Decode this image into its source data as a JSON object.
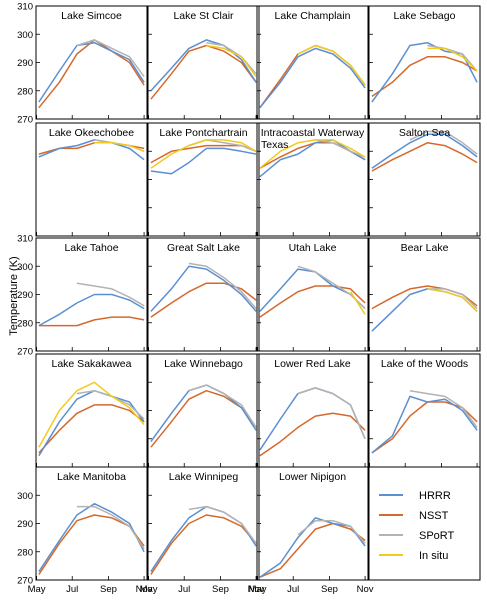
{
  "figure": {
    "ylabel": "Temperature (K)",
    "months": [
      "May",
      "Jul",
      "Sep",
      "Nov"
    ],
    "rows": [
      {
        "yticks": [
          310,
          300,
          290,
          280,
          270
        ],
        "ylim": [
          270,
          310
        ]
      },
      {
        "yticks": [],
        "ylim": [
          270,
          310
        ]
      },
      {
        "yticks": [
          310,
          300,
          290,
          280,
          270
        ],
        "ylim": [
          270,
          310
        ]
      },
      {
        "yticks": [],
        "ylim": [
          270,
          310
        ]
      },
      {
        "yticks": [
          300,
          290,
          280,
          270
        ],
        "ylim": [
          270,
          310
        ]
      }
    ],
    "legend": [
      {
        "name": "HRRR",
        "color": "#5b8fd2"
      },
      {
        "name": "NSST",
        "color": "#d5692b"
      },
      {
        "name": "SPoRT",
        "color": "#b3b3b3"
      },
      {
        "name": "In situ",
        "color": "#f2cb1f"
      }
    ]
  },
  "chart_data": [
    {
      "title": "Lake Simcoe",
      "type": "line",
      "x": [
        125,
        160,
        190,
        220,
        250,
        280,
        305
      ],
      "series": [
        {
          "name": "HRRR",
          "values": [
            276,
            287,
            296,
            297,
            294,
            291,
            283
          ]
        },
        {
          "name": "NSST",
          "values": [
            274,
            283,
            293,
            298,
            294,
            290,
            282
          ]
        },
        {
          "name": "SPoRT",
          "values": [
            null,
            null,
            296,
            298,
            295,
            292,
            285
          ]
        }
      ]
    },
    {
      "title": "Lake St Clair",
      "type": "line",
      "x": [
        125,
        160,
        190,
        220,
        250,
        280,
        305
      ],
      "series": [
        {
          "name": "HRRR",
          "values": [
            280,
            288,
            295,
            298,
            296,
            291,
            283
          ]
        },
        {
          "name": "NSST",
          "values": [
            277,
            286,
            294,
            296,
            294,
            290,
            283
          ]
        },
        {
          "name": "SPoRT",
          "values": [
            null,
            null,
            null,
            297,
            296,
            292,
            286
          ]
        },
        {
          "name": "In situ",
          "values": [
            null,
            null,
            null,
            296,
            295,
            292,
            285
          ]
        }
      ]
    },
    {
      "title": "Lake Champlain",
      "type": "line",
      "x": [
        125,
        160,
        190,
        220,
        250,
        280,
        305
      ],
      "series": [
        {
          "name": "HRRR",
          "values": [
            274,
            283,
            292,
            295,
            293,
            288,
            281
          ]
        },
        {
          "name": "NSST",
          "values": [
            274,
            284,
            293,
            296,
            294,
            289,
            282
          ]
        },
        {
          "name": "SPoRT",
          "values": [
            null,
            null,
            293,
            296,
            294,
            289,
            282
          ]
        },
        {
          "name": "In situ",
          "values": [
            null,
            null,
            293,
            296,
            294,
            289,
            282
          ]
        }
      ]
    },
    {
      "title": "Lake Sebago",
      "type": "line",
      "x": [
        125,
        160,
        190,
        220,
        250,
        280,
        305
      ],
      "series": [
        {
          "name": "HRRR",
          "values": [
            276,
            286,
            296,
            297,
            294,
            293,
            283
          ]
        },
        {
          "name": "NSST",
          "values": [
            278,
            283,
            289,
            292,
            292,
            290,
            287
          ]
        },
        {
          "name": "SPoRT",
          "values": [
            null,
            null,
            null,
            296,
            295,
            293,
            287
          ]
        },
        {
          "name": "In situ",
          "values": [
            null,
            null,
            null,
            295,
            295,
            292,
            287
          ]
        }
      ]
    },
    {
      "title": "Lake Okeechobee",
      "type": "line",
      "x": [
        125,
        160,
        190,
        220,
        250,
        280,
        305
      ],
      "series": [
        {
          "name": "HRRR",
          "values": [
            298,
            301,
            302,
            304,
            303,
            301,
            297
          ]
        },
        {
          "name": "NSST",
          "values": [
            299,
            301,
            301,
            303,
            303,
            302,
            301
          ]
        },
        {
          "name": "SPoRT",
          "values": [
            null,
            null,
            null,
            304,
            303,
            302,
            300
          ]
        },
        {
          "name": "In situ",
          "values": [
            null,
            null,
            null,
            303,
            303,
            302,
            300
          ]
        }
      ]
    },
    {
      "title": "Lake Pontchartrain",
      "type": "line",
      "x": [
        125,
        160,
        190,
        220,
        250,
        280,
        305
      ],
      "series": [
        {
          "name": "HRRR",
          "values": [
            293,
            292,
            296,
            301,
            301,
            300,
            299
          ]
        },
        {
          "name": "NSST",
          "values": [
            296,
            300,
            301,
            302,
            302,
            302,
            300
          ]
        },
        {
          "name": "SPoRT",
          "values": [
            null,
            null,
            302,
            304,
            303,
            302,
            300
          ]
        },
        {
          "name": "In situ",
          "values": [
            294,
            299,
            302,
            304,
            304,
            303,
            300
          ]
        }
      ]
    },
    {
      "title": "Intracoastal Waterway Texas",
      "type": "line",
      "x": [
        125,
        160,
        190,
        220,
        250,
        280,
        305
      ],
      "series": [
        {
          "name": "HRRR",
          "values": [
            291,
            297,
            299,
            303,
            304,
            300,
            297
          ]
        },
        {
          "name": "NSST",
          "values": [
            294,
            298,
            301,
            303,
            303,
            300,
            297
          ]
        },
        {
          "name": "SPoRT",
          "values": [
            null,
            null,
            null,
            304,
            303,
            300,
            298
          ]
        },
        {
          "name": "In situ",
          "values": [
            294,
            300,
            303,
            304,
            304,
            301,
            298
          ]
        }
      ]
    },
    {
      "title": "Salton Sea",
      "type": "line",
      "x": [
        125,
        160,
        190,
        220,
        250,
        280,
        305
      ],
      "series": [
        {
          "name": "HRRR",
          "values": [
            294,
            299,
            303,
            306,
            306,
            302,
            298
          ]
        },
        {
          "name": "NSST",
          "values": [
            293,
            297,
            300,
            303,
            302,
            299,
            296
          ]
        },
        {
          "name": "SPoRT",
          "values": [
            null,
            null,
            304,
            307,
            307,
            303,
            299
          ]
        }
      ]
    },
    {
      "title": "Lake Tahoe",
      "type": "line",
      "x": [
        125,
        160,
        190,
        220,
        250,
        280,
        305
      ],
      "series": [
        {
          "name": "HRRR",
          "values": [
            279,
            283,
            287,
            290,
            290,
            288,
            285
          ]
        },
        {
          "name": "NSST",
          "values": [
            279,
            279,
            279,
            281,
            282,
            282,
            281
          ]
        },
        {
          "name": "SPoRT",
          "values": [
            null,
            null,
            294,
            293,
            292,
            289,
            286
          ]
        }
      ]
    },
    {
      "title": "Great Salt Lake",
      "type": "line",
      "x": [
        125,
        160,
        190,
        220,
        250,
        280,
        305
      ],
      "series": [
        {
          "name": "HRRR",
          "values": [
            284,
            292,
            300,
            299,
            295,
            290,
            284
          ]
        },
        {
          "name": "NSST",
          "values": [
            282,
            287,
            291,
            294,
            294,
            292,
            288
          ]
        },
        {
          "name": "SPoRT",
          "values": [
            null,
            null,
            301,
            300,
            296,
            291,
            285
          ]
        }
      ]
    },
    {
      "title": "Utah Lake",
      "type": "line",
      "x": [
        125,
        160,
        190,
        220,
        250,
        280,
        305
      ],
      "series": [
        {
          "name": "HRRR",
          "values": [
            284,
            292,
            299,
            298,
            293,
            290,
            285
          ]
        },
        {
          "name": "NSST",
          "values": [
            282,
            287,
            291,
            293,
            293,
            292,
            287
          ]
        },
        {
          "name": "SPoRT",
          "values": [
            null,
            null,
            300,
            298,
            294,
            290,
            285
          ]
        },
        {
          "name": "In situ",
          "values": [
            null,
            null,
            null,
            null,
            null,
            291,
            283
          ]
        }
      ]
    },
    {
      "title": "Bear Lake",
      "type": "line",
      "x": [
        125,
        160,
        190,
        220,
        250,
        280,
        305
      ],
      "series": [
        {
          "name": "HRRR",
          "values": [
            277,
            284,
            290,
            292,
            291,
            289,
            284
          ]
        },
        {
          "name": "NSST",
          "values": [
            285,
            289,
            292,
            293,
            292,
            290,
            286
          ]
        },
        {
          "name": "SPoRT",
          "values": [
            null,
            null,
            null,
            292,
            292,
            290,
            285
          ]
        },
        {
          "name": "In situ",
          "values": [
            null,
            null,
            null,
            292,
            291,
            289,
            284
          ]
        }
      ]
    },
    {
      "title": "Lake Sakakawea",
      "type": "line",
      "x": [
        125,
        160,
        190,
        220,
        250,
        280,
        305
      ],
      "series": [
        {
          "name": "HRRR",
          "values": [
            274,
            286,
            294,
            297,
            295,
            293,
            286
          ]
        },
        {
          "name": "NSST",
          "values": [
            275,
            283,
            289,
            292,
            292,
            290,
            286
          ]
        },
        {
          "name": "SPoRT",
          "values": [
            null,
            null,
            296,
            297,
            295,
            292,
            287
          ]
        },
        {
          "name": "In situ",
          "values": [
            277,
            290,
            297,
            300,
            295,
            291,
            285
          ]
        }
      ]
    },
    {
      "title": "Lake Winnebago",
      "type": "line",
      "x": [
        125,
        160,
        190,
        220,
        250,
        280,
        305
      ],
      "series": [
        {
          "name": "HRRR",
          "values": [
            279,
            289,
            297,
            299,
            296,
            291,
            283
          ]
        },
        {
          "name": "NSST",
          "values": [
            277,
            286,
            294,
            297,
            295,
            291,
            284
          ]
        },
        {
          "name": "SPoRT",
          "values": [
            null,
            null,
            297,
            299,
            296,
            292,
            284
          ]
        }
      ]
    },
    {
      "title": "Lower Red Lake",
      "type": "line",
      "x": [
        125,
        160,
        190,
        220,
        250,
        280,
        305
      ],
      "series": [
        {
          "name": "HRRR",
          "values": [
            276,
            287,
            296,
            298,
            296,
            292,
            280
          ]
        },
        {
          "name": "NSST",
          "values": [
            274,
            279,
            284,
            288,
            289,
            288,
            283
          ]
        },
        {
          "name": "SPoRT",
          "values": [
            null,
            null,
            296,
            298,
            296,
            292,
            280
          ]
        }
      ]
    },
    {
      "title": "Lake of the Woods",
      "type": "line",
      "x": [
        125,
        160,
        190,
        220,
        250,
        280,
        305
      ],
      "series": [
        {
          "name": "HRRR",
          "values": [
            275,
            281,
            295,
            293,
            294,
            290,
            283
          ]
        },
        {
          "name": "NSST",
          "values": [
            275,
            280,
            288,
            293,
            293,
            291,
            286
          ]
        },
        {
          "name": "SPoRT",
          "values": [
            null,
            null,
            297,
            296,
            295,
            291,
            284
          ]
        }
      ]
    },
    {
      "title": "Lake Manitoba",
      "type": "line",
      "x": [
        125,
        160,
        190,
        220,
        250,
        280,
        305
      ],
      "series": [
        {
          "name": "HRRR",
          "values": [
            273,
            284,
            293,
            297,
            294,
            290,
            280
          ]
        },
        {
          "name": "NSST",
          "values": [
            272,
            283,
            291,
            293,
            292,
            289,
            282
          ]
        },
        {
          "name": "SPoRT",
          "values": [
            null,
            null,
            296,
            296,
            293,
            289,
            281
          ]
        }
      ]
    },
    {
      "title": "Lake Winnipeg",
      "type": "line",
      "x": [
        125,
        160,
        190,
        220,
        250,
        280,
        305
      ],
      "series": [
        {
          "name": "HRRR",
          "values": [
            273,
            284,
            292,
            296,
            294,
            290,
            282
          ]
        },
        {
          "name": "NSST",
          "values": [
            272,
            283,
            290,
            293,
            292,
            289,
            283
          ]
        },
        {
          "name": "SPoRT",
          "values": [
            null,
            null,
            295,
            296,
            294,
            290,
            283
          ]
        }
      ]
    },
    {
      "title": "Lower Nipigon",
      "type": "line",
      "x": [
        125,
        160,
        190,
        220,
        250,
        280,
        305
      ],
      "series": [
        {
          "name": "HRRR",
          "values": [
            271,
            276,
            285,
            292,
            290,
            289,
            282
          ]
        },
        {
          "name": "NSST",
          "values": [
            271,
            274,
            281,
            288,
            290,
            288,
            284
          ]
        },
        {
          "name": "SPoRT",
          "values": [
            null,
            null,
            286,
            291,
            291,
            289,
            283
          ]
        }
      ]
    }
  ]
}
